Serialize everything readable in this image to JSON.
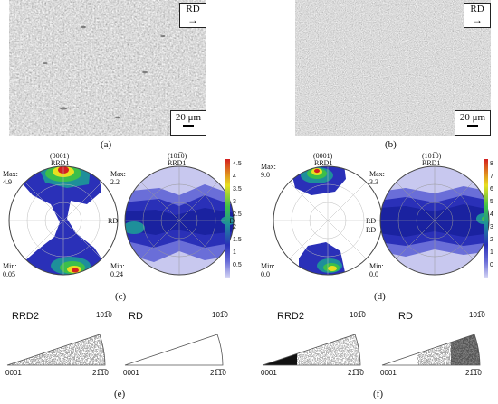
{
  "figure": {
    "panel_a": {
      "caption": "(a)",
      "direction_label": "RD",
      "scale_bar": "20 μm"
    },
    "panel_b": {
      "caption": "(b)",
      "direction_label": "RD",
      "scale_bar": "20 μm"
    },
    "panel_c": {
      "caption": "(c)",
      "pf1": {
        "plane": "(0001)",
        "axis_top": "RRD1",
        "axis_right": "RD",
        "max_label": "Max:",
        "max_value": "4.9",
        "min_label": "Min:",
        "min_value": "0.05"
      },
      "pf2": {
        "plane": "(101̅0)",
        "axis_top": "RRD1",
        "axis_right": "RD",
        "max_label": "Max:",
        "max_value": "2.2",
        "min_label": "Min:",
        "min_value": "0.24"
      },
      "colorbar_ticks": [
        "4.5",
        "4",
        "3.5",
        "3",
        "2.5",
        "2",
        "1.5",
        "1",
        "0.5"
      ]
    },
    "panel_d": {
      "caption": "(d)",
      "pf1": {
        "plane": "(0001)",
        "axis_top": "RRD1",
        "axis_right": "RD",
        "max_label": "Max:",
        "max_value": "9.0",
        "min_label": "Min:",
        "min_value": "0.0"
      },
      "pf2": {
        "plane": "(101̅0)",
        "axis_top": "RRD1",
        "axis_right": "RD",
        "max_label": "Max:",
        "max_value": "3.3",
        "min_label": "Min:",
        "min_value": "0.0"
      },
      "colorbar_ticks": [
        "8",
        "7",
        "6",
        "5",
        "4",
        "3",
        "2",
        "1",
        "0"
      ]
    },
    "panel_e": {
      "caption": "(e)",
      "ipf1": {
        "title": "RRD2",
        "corner_top": "101̅0",
        "corner_left": "0001",
        "corner_right": "21̅1̅0"
      },
      "ipf2": {
        "title": "RD",
        "corner_top": "101̅0",
        "corner_left": "0001",
        "corner_right": "21̅1̅0"
      }
    },
    "panel_f": {
      "caption": "(f)",
      "ipf1": {
        "title": "RRD2",
        "corner_top": "101̅0",
        "corner_left": "0001",
        "corner_right": "21̅1̅0"
      },
      "ipf2": {
        "title": "RD",
        "corner_top": "101̅0",
        "corner_left": "0001",
        "corner_right": "21̅1̅0"
      }
    },
    "colors": {
      "pf_low": "#c8c8ef",
      "pf_mid": "#2a30b8",
      "pf_teal": "#1e8f9a",
      "pf_green": "#3cbf4a",
      "pf_yellow": "#e8e020",
      "pf_red": "#d42020",
      "micro_gray": "#b8b8b8"
    }
  }
}
